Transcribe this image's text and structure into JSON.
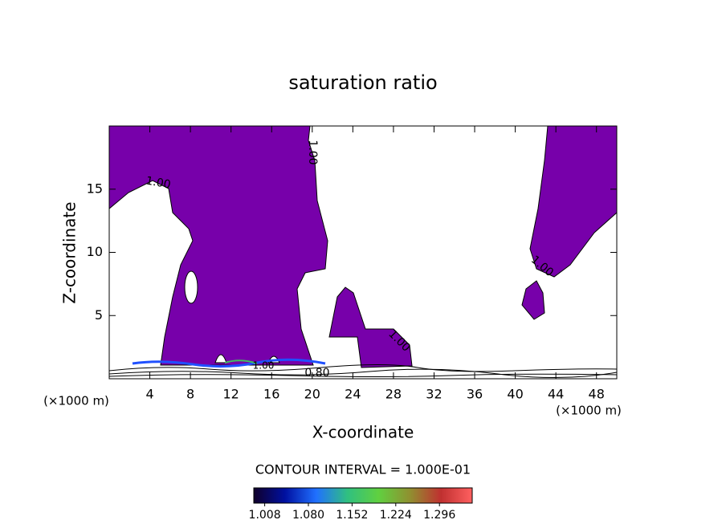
{
  "chart_data": {
    "type": "contour",
    "title": "saturation ratio",
    "xlabel": "X-coordinate",
    "ylabel": "Z-coordinate",
    "xunit": "(×1000 m)",
    "yunit": "(×1000 m)",
    "xlim": [
      0,
      50
    ],
    "ylim": [
      0,
      20
    ],
    "xticks": [
      4,
      8,
      12,
      16,
      20,
      24,
      28,
      32,
      36,
      40,
      44,
      48
    ],
    "yticks": [
      5,
      10,
      15
    ],
    "fill_color": "#7700aa",
    "contour_labels": [
      "1.00",
      "1.00",
      "1.00",
      "1.00",
      "1.00",
      "0.80"
    ],
    "contour_interval": "CONTOUR INTERVAL = 1.000E-01",
    "colorbar": {
      "lim": [
        0.99,
        1.35
      ],
      "colors": [
        "#10002a",
        "#0010a0",
        "#2070ff",
        "#30c080",
        "#60d040",
        "#909030",
        "#c03030",
        "#ff6060"
      ],
      "ticks": [
        1.008,
        {
          "value": 1.08,
          "label": "1.080"
        },
        1.152,
        1.224,
        1.296
      ]
    }
  }
}
